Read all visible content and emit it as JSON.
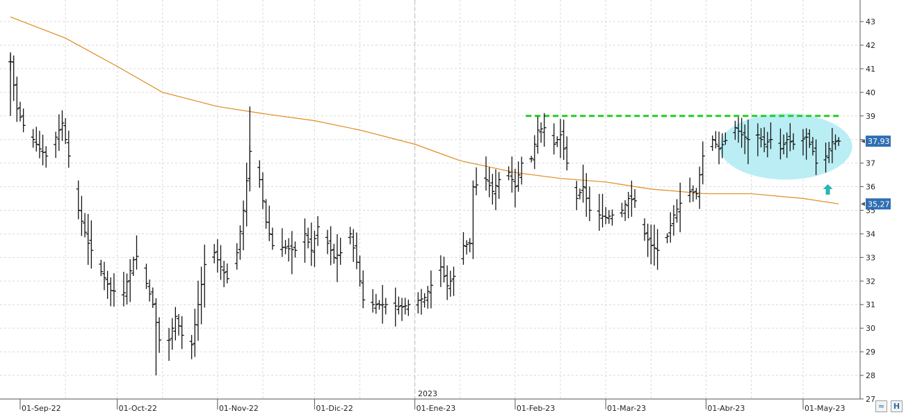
{
  "chart_data": {
    "type": "ohlc",
    "year_label": "2023",
    "x_ticks": [
      "01-Sep-22",
      "01-Oct-22",
      "01-Nov-22",
      "01-Dic-22",
      "01-Ene-23",
      "01-Feb-23",
      "01-Mar-23",
      "01-Abr-23",
      "01-May-23"
    ],
    "y_ticks": [
      27,
      28,
      29,
      30,
      31,
      32,
      33,
      34,
      35,
      36,
      37,
      38,
      39,
      40,
      41,
      42,
      43
    ],
    "ylim": [
      27,
      43.8
    ],
    "grid": true,
    "price_axis": "right",
    "last_price_label": "37,93",
    "moving_average_label": "35,27",
    "colors": {
      "bars": "#111111",
      "moving_average": "#e08a1e",
      "resistance": "#22cc22",
      "highlight": "#b2ecf3",
      "arrow": "#2bb5b5",
      "badge": "#2f6fb2",
      "grid": "#d9d9d9"
    },
    "resistance_level": 39.0,
    "highlight_zone": {
      "from": "03-Abr-23",
      "to": "08-May-23",
      "low": 36.3,
      "high": 39.1
    },
    "arrow_marker": {
      "date": "08-May-23",
      "value": 35.9,
      "icon": "arrow-up-icon"
    },
    "moving_average": [
      {
        "date": "29-Ago-22",
        "value": 43.2
      },
      {
        "date": "15-Sep-22",
        "value": 42.3
      },
      {
        "date": "01-Oct-22",
        "value": 41.1
      },
      {
        "date": "15-Oct-22",
        "value": 40.0
      },
      {
        "date": "01-Nov-22",
        "value": 39.4
      },
      {
        "date": "15-Nov-22",
        "value": 39.1
      },
      {
        "date": "01-Dic-22",
        "value": 38.8
      },
      {
        "date": "15-Dic-22",
        "value": 38.4
      },
      {
        "date": "01-Ene-23",
        "value": 37.8
      },
      {
        "date": "15-Ene-23",
        "value": 37.1
      },
      {
        "date": "01-Feb-23",
        "value": 36.6
      },
      {
        "date": "15-Feb-23",
        "value": 36.35
      },
      {
        "date": "01-Mar-23",
        "value": 36.2
      },
      {
        "date": "15-Mar-23",
        "value": 35.9
      },
      {
        "date": "01-Abr-23",
        "value": 35.7
      },
      {
        "date": "15-Abr-23",
        "value": 35.7
      },
      {
        "date": "01-May-23",
        "value": 35.5
      },
      {
        "date": "12-May-23",
        "value": 35.27
      }
    ],
    "bar_anchors": [
      {
        "date": "29-Ago-22",
        "value": 41.3
      },
      {
        "date": "31-Ago-22",
        "value": 39.3
      },
      {
        "date": "02-Sep-22",
        "value": 38.6
      },
      {
        "date": "07-Sep-22",
        "value": 37.6
      },
      {
        "date": "09-Sep-22",
        "value": 37.3
      },
      {
        "date": "12-Sep-22",
        "value": 38.1
      },
      {
        "date": "14-Sep-22",
        "value": 38.7
      },
      {
        "date": "16-Sep-22",
        "value": 37.3
      },
      {
        "date": "19-Sep-22",
        "value": 35.0
      },
      {
        "date": "22-Sep-22",
        "value": 33.6
      },
      {
        "date": "26-Sep-22",
        "value": 32.4
      },
      {
        "date": "29-Sep-22",
        "value": 31.6
      },
      {
        "date": "03-Oct-22",
        "value": 31.5
      },
      {
        "date": "06-Oct-22",
        "value": 32.9
      },
      {
        "date": "08-Oct-22",
        "value": 33.2
      },
      {
        "date": "10-Oct-22",
        "value": 31.9
      },
      {
        "date": "12-Oct-22",
        "value": 31.0
      },
      {
        "date": "14-Oct-22",
        "value": 29.5
      },
      {
        "date": "17-Oct-22",
        "value": 29.5
      },
      {
        "date": "19-Oct-22",
        "value": 30.5
      },
      {
        "date": "21-Oct-22",
        "value": 29.7
      },
      {
        "date": "24-Oct-22",
        "value": 29.3
      },
      {
        "date": "26-Oct-22",
        "value": 31.0
      },
      {
        "date": "28-Oct-22",
        "value": 32.7
      },
      {
        "date": "31-Oct-22",
        "value": 33.2
      },
      {
        "date": "02-Nov-22",
        "value": 32.6
      },
      {
        "date": "04-Nov-22",
        "value": 32.1
      },
      {
        "date": "07-Nov-22",
        "value": 33.2
      },
      {
        "date": "09-Nov-22",
        "value": 35.0
      },
      {
        "date": "11-Nov-22",
        "value": 37.5
      },
      {
        "date": "14-Nov-22",
        "value": 36.3
      },
      {
        "date": "16-Nov-22",
        "value": 34.5
      },
      {
        "date": "18-Nov-22",
        "value": 33.5
      },
      {
        "date": "22-Nov-22",
        "value": 33.4
      },
      {
        "date": "25-Nov-22",
        "value": 33.3
      },
      {
        "date": "28-Nov-22",
        "value": 34.0
      },
      {
        "date": "30-Nov-22",
        "value": 33.3
      },
      {
        "date": "02-Dic-22",
        "value": 34.3
      },
      {
        "date": "05-Dic-22",
        "value": 33.6
      },
      {
        "date": "07-Dic-22",
        "value": 33.0
      },
      {
        "date": "09-Dic-22",
        "value": 33.2
      },
      {
        "date": "12-Dic-22",
        "value": 34.0
      },
      {
        "date": "14-Dic-22",
        "value": 32.8
      },
      {
        "date": "16-Dic-22",
        "value": 31.2
      },
      {
        "date": "19-Dic-22",
        "value": 31.0
      },
      {
        "date": "23-Dic-22",
        "value": 31.0
      },
      {
        "date": "28-Dic-22",
        "value": 30.9
      },
      {
        "date": "30-Dic-22",
        "value": 31.0
      },
      {
        "date": "04-Ene-23",
        "value": 31.3
      },
      {
        "date": "09-Ene-23",
        "value": 32.6
      },
      {
        "date": "11-Ene-23",
        "value": 31.8
      },
      {
        "date": "13-Ene-23",
        "value": 32.2
      },
      {
        "date": "16-Ene-23",
        "value": 33.5
      },
      {
        "date": "18-Ene-23",
        "value": 33.6
      },
      {
        "date": "19-Ene-23",
        "value": 36.0
      },
      {
        "date": "23-Ene-23",
        "value": 36.3
      },
      {
        "date": "25-Ene-23",
        "value": 35.8
      },
      {
        "date": "27-Ene-23",
        "value": 36.3
      },
      {
        "date": "30-Ene-23",
        "value": 36.6
      },
      {
        "date": "01-Feb-23",
        "value": 36.0
      },
      {
        "date": "03-Feb-23",
        "value": 37.0
      },
      {
        "date": "06-Feb-23",
        "value": 37.2
      },
      {
        "date": "08-Feb-23",
        "value": 38.4
      },
      {
        "date": "10-Feb-23",
        "value": 38.5
      },
      {
        "date": "13-Feb-23",
        "value": 37.8
      },
      {
        "date": "15-Feb-23",
        "value": 38.2
      },
      {
        "date": "17-Feb-23",
        "value": 37.0
      },
      {
        "date": "20-Feb-23",
        "value": 35.5
      },
      {
        "date": "22-Feb-23",
        "value": 36.0
      },
      {
        "date": "24-Feb-23",
        "value": 35.0
      },
      {
        "date": "27-Feb-23",
        "value": 34.8
      },
      {
        "date": "01-Mar-23",
        "value": 34.7
      },
      {
        "date": "03-Mar-23",
        "value": 34.8
      },
      {
        "date": "06-Mar-23",
        "value": 35.0
      },
      {
        "date": "08-Mar-23",
        "value": 35.5
      },
      {
        "date": "10-Mar-23",
        "value": 35.4
      },
      {
        "date": "13-Mar-23",
        "value": 34.0
      },
      {
        "date": "15-Mar-23",
        "value": 33.5
      },
      {
        "date": "17-Mar-23",
        "value": 33.3
      },
      {
        "date": "20-Mar-23",
        "value": 33.9
      },
      {
        "date": "22-Mar-23",
        "value": 34.8
      },
      {
        "date": "24-Mar-23",
        "value": 35.3
      },
      {
        "date": "27-Mar-23",
        "value": 35.8
      },
      {
        "date": "29-Mar-23",
        "value": 35.7
      },
      {
        "date": "31-Mar-23",
        "value": 37.3
      },
      {
        "date": "03-Abr-23",
        "value": 38.0
      },
      {
        "date": "05-Abr-23",
        "value": 37.6
      },
      {
        "date": "10-Abr-23",
        "value": 38.5
      },
      {
        "date": "12-Abr-23",
        "value": 38.2
      },
      {
        "date": "14-Abr-23",
        "value": 38.0
      },
      {
        "date": "17-Abr-23",
        "value": 38.2
      },
      {
        "date": "19-Abr-23",
        "value": 37.8
      },
      {
        "date": "21-Abr-23",
        "value": 38.0
      },
      {
        "date": "24-Abr-23",
        "value": 37.6
      },
      {
        "date": "26-Abr-23",
        "value": 38.0
      },
      {
        "date": "28-Abr-23",
        "value": 37.8
      },
      {
        "date": "02-May-23",
        "value": 38.1
      },
      {
        "date": "04-May-23",
        "value": 37.5
      },
      {
        "date": "05-May-23",
        "value": 37.0
      },
      {
        "date": "08-May-23",
        "value": 37.3
      },
      {
        "date": "10-May-23",
        "value": 37.9
      },
      {
        "date": "12-May-23",
        "value": 37.93
      }
    ]
  },
  "toolbar": {
    "zoom_icon": "wave-icon",
    "save_icon": "h-icon"
  }
}
